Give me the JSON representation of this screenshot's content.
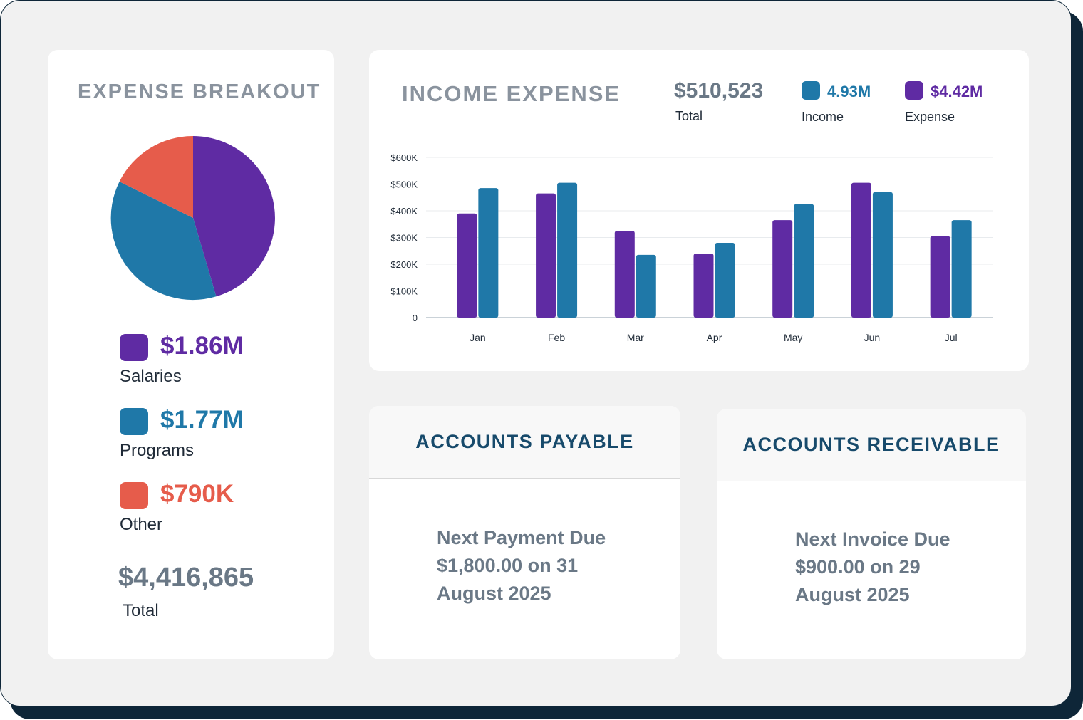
{
  "expense_breakout": {
    "title": "EXPENSE BREAKOUT",
    "items": [
      {
        "value": "$1.86M",
        "label": "Salaries",
        "color": "#5f2ba3"
      },
      {
        "value": "$1.77M",
        "label": "Programs",
        "color": "#1f78a8"
      },
      {
        "value": "$790K",
        "label": "Other",
        "color": "#e65c4b"
      }
    ],
    "total": "$4,416,865",
    "total_label": "Total"
  },
  "income_expense": {
    "title": "INCOME EXPENSE",
    "total_value": "$510,523",
    "total_label": "Total",
    "income_value": "4.93M",
    "income_label": "Income",
    "income_color": "#1f78a8",
    "expense_value": "$4.42M",
    "expense_label": "Expense",
    "expense_color": "#5f2ba3"
  },
  "chart_data": {
    "type": "bar",
    "categories": [
      "Jan",
      "Feb",
      "Mar",
      "Apr",
      "May",
      "Jun",
      "Jul"
    ],
    "series": [
      {
        "name": "Expense",
        "color": "#5f2ba3",
        "values": [
          390000,
          465000,
          325000,
          240000,
          365000,
          505000,
          305000
        ]
      },
      {
        "name": "Income",
        "color": "#1f78a8",
        "values": [
          485000,
          505000,
          235000,
          280000,
          425000,
          470000,
          365000
        ]
      }
    ],
    "y_ticks": [
      "0",
      "$100K",
      "$200K",
      "$300K",
      "$400K",
      "$500K",
      "$600K"
    ],
    "ylim": [
      0,
      600000
    ],
    "grid": true
  },
  "accounts_payable": {
    "title": "ACCOUNTS PAYABLE",
    "line1": "Next Payment Due",
    "line2": "$1,800.00 on 31",
    "line3": "August 2025"
  },
  "accounts_receivable": {
    "title": "ACCOUNTS RECEIVABLE",
    "line1": "Next Invoice Due",
    "line2": "$900.00 on 29",
    "line3": "August 2025"
  }
}
